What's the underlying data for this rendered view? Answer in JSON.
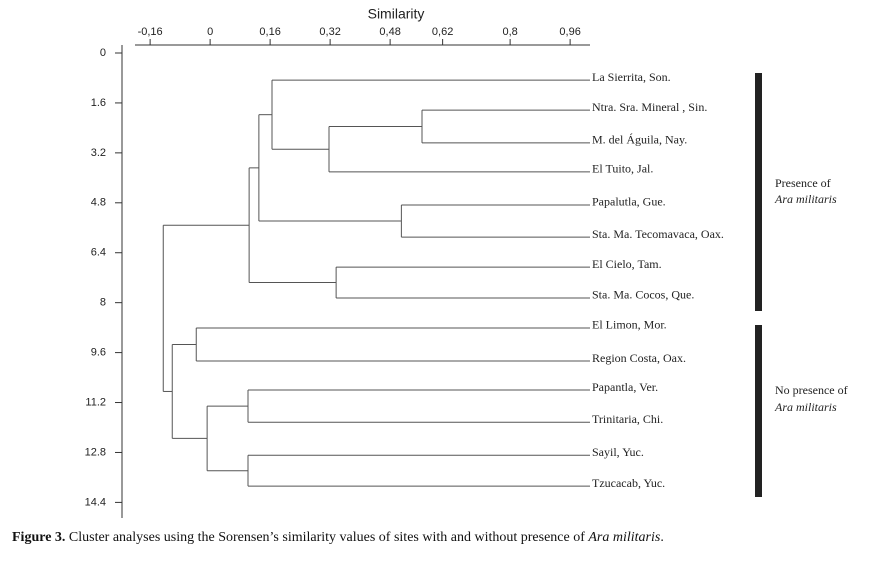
{
  "chart_data": {
    "type": "dendrogram",
    "title": "Similarity",
    "xlim": [
      -0.235,
      1.013
    ],
    "xticks": [
      {
        "value": -0.16,
        "label": "-0,16"
      },
      0,
      {
        "value": 0.16,
        "label": "0,16"
      },
      {
        "value": 0.32,
        "label": "0,32"
      },
      {
        "value": 0.48,
        "label": "0,48"
      },
      {
        "value": 0.62,
        "label": "0,62"
      },
      {
        "value": 0.8,
        "label": "0,8"
      },
      {
        "value": 0.96,
        "label": "0,96"
      }
    ],
    "ylim": [
      0,
      14.9
    ],
    "yticks": [
      0,
      1.6,
      3.2,
      4.8,
      6.4,
      8,
      9.6,
      11.2,
      12.8,
      14.4
    ],
    "color": "#555555",
    "tree": {
      "value": -0.125,
      "children": [
        {
          "value": 0.104,
          "children": [
            {
              "value": 0.13,
              "children": [
                {
                  "value": 0.165,
                  "children": [
                    {
                      "label": "La Sierrita, Son.",
                      "y": 0.87
                    },
                    {
                      "value": 0.317,
                      "children": [
                        {
                          "value": 0.565,
                          "children": [
                            {
                              "label": "Ntra. Sra. Mineral , Sin.",
                              "y": 1.83
                            },
                            {
                              "label": "M. del Águila, Nay.",
                              "y": 2.88
                            }
                          ]
                        },
                        {
                          "label": "El Tuito, Jal.",
                          "y": 3.81
                        }
                      ]
                    }
                  ]
                },
                {
                  "value": 0.51,
                  "children": [
                    {
                      "label": "Papalutla, Gue.",
                      "y": 4.87
                    },
                    {
                      "label": "Sta. Ma. Tecomavaca, Oax.",
                      "y": 5.9
                    }
                  ]
                }
              ]
            },
            {
              "value": 0.336,
              "children": [
                {
                  "label": "El Cielo, Tam.",
                  "y": 6.86
                },
                {
                  "label": "Sta. Ma. Cocos, Que.",
                  "y": 7.85
                }
              ]
            }
          ]
        },
        {
          "value": -0.101,
          "children": [
            {
              "value": -0.037,
              "children": [
                {
                  "label": "El Limon, Mor.",
                  "y": 8.81
                },
                {
                  "label": "Region Costa, Oax.",
                  "y": 9.87
                }
              ]
            },
            {
              "value": -0.008,
              "children": [
                {
                  "value": 0.101,
                  "children": [
                    {
                      "label": "Papantla, Ver.",
                      "y": 10.8
                    },
                    {
                      "label": "Trinitaria, Chi.",
                      "y": 11.83
                    }
                  ]
                },
                {
                  "value": 0.101,
                  "children": [
                    {
                      "label": "Sayil, Yuc.",
                      "y": 12.89
                    },
                    {
                      "label": "Tzucacab, Yuc.",
                      "y": 13.88
                    }
                  ]
                }
              ]
            }
          ]
        }
      ]
    },
    "annotations": [
      {
        "text": "Presence of",
        "species": "Ara militaris"
      },
      {
        "text": "No presence of",
        "species": "Ara militaris"
      }
    ]
  },
  "caption": {
    "label": "Figure 3.",
    "text": "Cluster analyses using the Sorensen’s similarity values of sites with and without presence of",
    "species": "Ara militaris",
    "end": "."
  }
}
